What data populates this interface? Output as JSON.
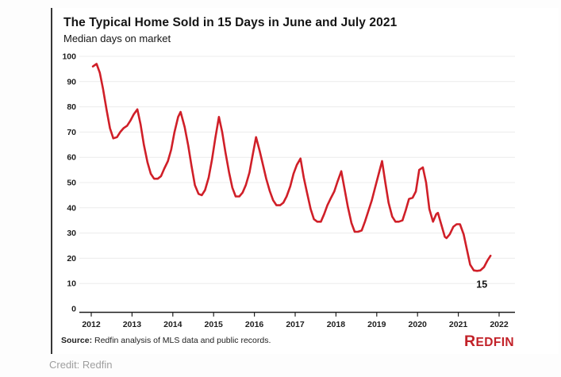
{
  "page": {
    "credit": "Credit: Redfin"
  },
  "figure": {
    "title": "The Typical Home Sold in 15 Days in June and July 2021",
    "subtitle": "Median days on market",
    "source_label": "Source:",
    "source_text": " Redfin analysis of MLS data and public records.",
    "logo_text": "Redfin"
  },
  "chart_data": {
    "type": "line",
    "title": "The Typical Home Sold in 15 Days in June and July 2021",
    "subtitle": "Median days on market",
    "xlabel": "",
    "ylabel": "Median days on market",
    "xlim": [
      2011.71,
      2022.39
    ],
    "ylim": [
      0,
      100
    ],
    "x_ticks": [
      2012,
      2013,
      2014,
      2015,
      2016,
      2017,
      2018,
      2019,
      2020,
      2021,
      2022
    ],
    "y_ticks": [
      0,
      10,
      20,
      30,
      40,
      50,
      60,
      70,
      80,
      90,
      100
    ],
    "grid": "horizontal",
    "legend": "none",
    "line_color": "#d01f28",
    "annotation": {
      "label": "15",
      "x": 2021.46,
      "y": 15
    },
    "series": [
      {
        "name": "Median days on market",
        "points": [
          [
            2012.04,
            96
          ],
          [
            2012.13,
            97
          ],
          [
            2012.21,
            93.5
          ],
          [
            2012.29,
            87
          ],
          [
            2012.38,
            78.5
          ],
          [
            2012.46,
            71.5
          ],
          [
            2012.54,
            67.5
          ],
          [
            2012.63,
            68
          ],
          [
            2012.71,
            70
          ],
          [
            2012.79,
            71.5
          ],
          [
            2012.88,
            72.5
          ],
          [
            2012.96,
            74.5
          ],
          [
            2013.04,
            77
          ],
          [
            2013.13,
            79
          ],
          [
            2013.21,
            73
          ],
          [
            2013.29,
            65
          ],
          [
            2013.38,
            58
          ],
          [
            2013.46,
            53.5
          ],
          [
            2013.54,
            51.5
          ],
          [
            2013.63,
            51.5
          ],
          [
            2013.71,
            52.5
          ],
          [
            2013.79,
            55.5
          ],
          [
            2013.88,
            58.5
          ],
          [
            2013.96,
            63
          ],
          [
            2014.04,
            70
          ],
          [
            2014.13,
            76
          ],
          [
            2014.19,
            78
          ],
          [
            2014.29,
            72
          ],
          [
            2014.38,
            64.5
          ],
          [
            2014.46,
            56.5
          ],
          [
            2014.54,
            49
          ],
          [
            2014.63,
            45.5
          ],
          [
            2014.71,
            45
          ],
          [
            2014.79,
            47
          ],
          [
            2014.88,
            52
          ],
          [
            2014.96,
            59
          ],
          [
            2015.04,
            67.5
          ],
          [
            2015.13,
            76
          ],
          [
            2015.21,
            70
          ],
          [
            2015.29,
            62
          ],
          [
            2015.38,
            54
          ],
          [
            2015.46,
            48
          ],
          [
            2015.54,
            44.5
          ],
          [
            2015.63,
            44.5
          ],
          [
            2015.71,
            46
          ],
          [
            2015.79,
            49
          ],
          [
            2015.88,
            54
          ],
          [
            2015.96,
            61
          ],
          [
            2016.04,
            68
          ],
          [
            2016.13,
            62.5
          ],
          [
            2016.21,
            57
          ],
          [
            2016.29,
            51.5
          ],
          [
            2016.38,
            46.5
          ],
          [
            2016.46,
            43
          ],
          [
            2016.54,
            41
          ],
          [
            2016.63,
            41
          ],
          [
            2016.71,
            42
          ],
          [
            2016.79,
            44.5
          ],
          [
            2016.88,
            48.5
          ],
          [
            2016.96,
            53.5
          ],
          [
            2017.04,
            57
          ],
          [
            2017.13,
            59.5
          ],
          [
            2017.21,
            52
          ],
          [
            2017.29,
            46
          ],
          [
            2017.38,
            39.5
          ],
          [
            2017.46,
            35.5
          ],
          [
            2017.54,
            34.5
          ],
          [
            2017.63,
            34.5
          ],
          [
            2017.71,
            37.5
          ],
          [
            2017.79,
            41
          ],
          [
            2017.88,
            44
          ],
          [
            2017.96,
            46.5
          ],
          [
            2018.04,
            50.5
          ],
          [
            2018.13,
            54.5
          ],
          [
            2018.21,
            47.5
          ],
          [
            2018.29,
            40.5
          ],
          [
            2018.38,
            34
          ],
          [
            2018.46,
            30.5
          ],
          [
            2018.54,
            30.5
          ],
          [
            2018.63,
            31
          ],
          [
            2018.71,
            34.5
          ],
          [
            2018.79,
            38.5
          ],
          [
            2018.88,
            43
          ],
          [
            2018.96,
            48
          ],
          [
            2019.04,
            53
          ],
          [
            2019.13,
            58.5
          ],
          [
            2019.21,
            50
          ],
          [
            2019.29,
            42
          ],
          [
            2019.38,
            36.5
          ],
          [
            2019.46,
            34.5
          ],
          [
            2019.54,
            34.5
          ],
          [
            2019.63,
            35
          ],
          [
            2019.71,
            39
          ],
          [
            2019.79,
            43.5
          ],
          [
            2019.88,
            44
          ],
          [
            2019.96,
            46.5
          ],
          [
            2020.04,
            55
          ],
          [
            2020.13,
            56
          ],
          [
            2020.21,
            50
          ],
          [
            2020.29,
            39.5
          ],
          [
            2020.38,
            34.5
          ],
          [
            2020.46,
            37.5
          ],
          [
            2020.5,
            38
          ],
          [
            2020.58,
            33.5
          ],
          [
            2020.67,
            28.5
          ],
          [
            2020.71,
            28
          ],
          [
            2020.79,
            29.5
          ],
          [
            2020.88,
            32.5
          ],
          [
            2020.96,
            33.5
          ],
          [
            2021.04,
            33.5
          ],
          [
            2021.13,
            29.5
          ],
          [
            2021.21,
            23.5
          ],
          [
            2021.29,
            17.5
          ],
          [
            2021.38,
            15.2
          ],
          [
            2021.46,
            15
          ],
          [
            2021.54,
            15.2
          ],
          [
            2021.63,
            16.5
          ],
          [
            2021.71,
            19
          ],
          [
            2021.79,
            21
          ]
        ]
      }
    ]
  }
}
